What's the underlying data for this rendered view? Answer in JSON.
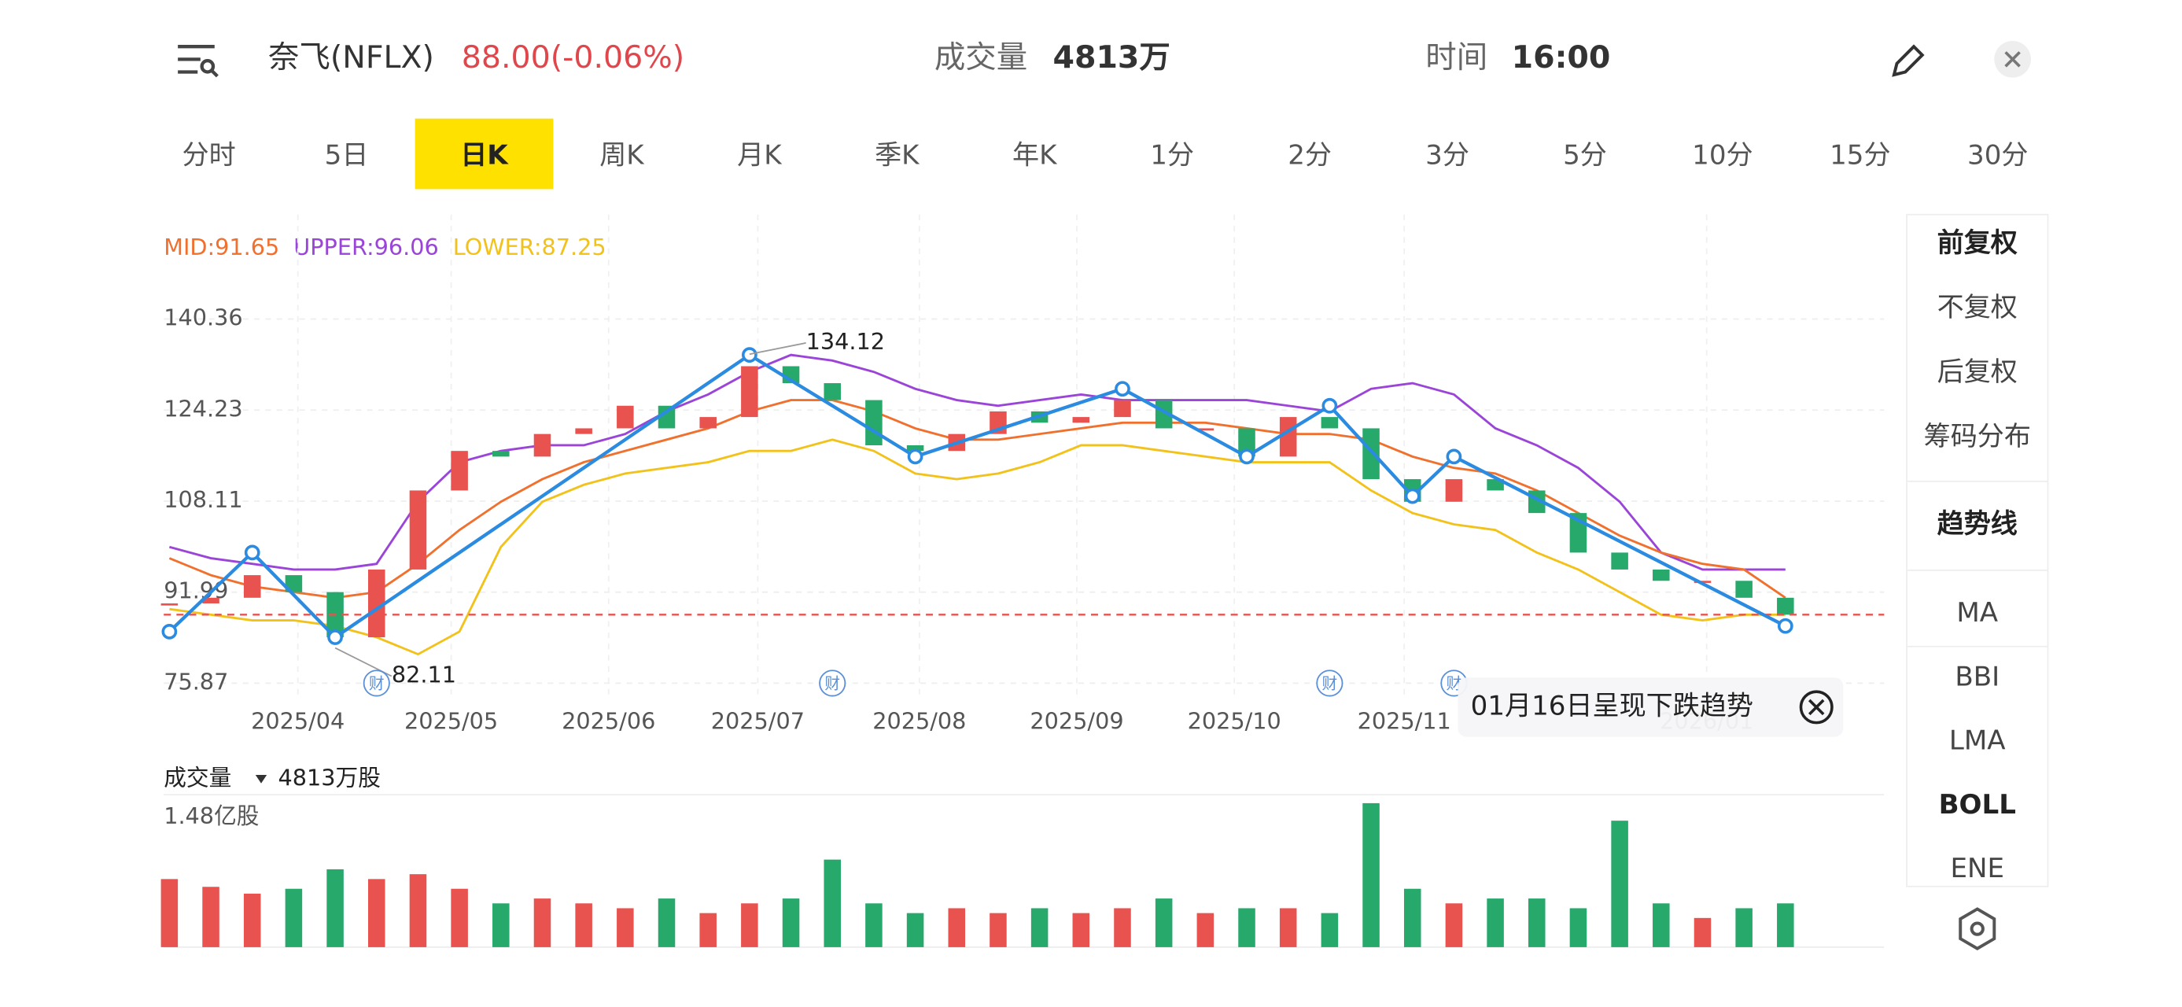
{
  "header": {
    "name": "奈飞(NFLX)",
    "price": "88.00(-0.06%)",
    "volume_label": "成交量",
    "volume": "4813万",
    "time_label": "时间",
    "time": "16:00"
  },
  "tabs": {
    "items": [
      "分时",
      "5日",
      "日K",
      "周K",
      "月K",
      "季K",
      "年K",
      "1分",
      "2分",
      "3分",
      "5分",
      "10分",
      "15分",
      "30分"
    ],
    "selected": 2
  },
  "chart_data": {
    "type": "candlestick",
    "legend": [
      {
        "label": "MID:91.65",
        "color": "#f0702e"
      },
      {
        "label": "UPPER:96.06",
        "color": "#9b45d8"
      },
      {
        "label": "LOWER:87.25",
        "color": "#f2c21b"
      }
    ],
    "ylim": [
      75.87,
      140.36
    ],
    "yticks": [
      75.87,
      91.99,
      108.11,
      124.23,
      140.36
    ],
    "xticks": [
      {
        "value": 3.1,
        "label": "2025/04"
      },
      {
        "value": 6.8,
        "label": "2025/05"
      },
      {
        "value": 10.6,
        "label": "2025/06"
      },
      {
        "value": 14.2,
        "label": "2025/07"
      },
      {
        "value": 18.1,
        "label": "2025/08"
      },
      {
        "value": 21.9,
        "label": "2025/09"
      },
      {
        "value": 25.7,
        "label": "2025/10"
      },
      {
        "value": 29.8,
        "label": "2025/11"
      },
      {
        "value": 37.1,
        "label": "2026/01"
      }
    ],
    "close": [
      90,
      91,
      95,
      92,
      84,
      96,
      110,
      117,
      116,
      120,
      121,
      125,
      121,
      123,
      132,
      129,
      126,
      118,
      117,
      120,
      124,
      122,
      123,
      126,
      121,
      121,
      116,
      123,
      121,
      112,
      108,
      112,
      110,
      106,
      99,
      96,
      94,
      94,
      91,
      88
    ],
    "upper": [
      100,
      98,
      97,
      96,
      96,
      97,
      108,
      115,
      117,
      118,
      118,
      120,
      124,
      127,
      131,
      134,
      133,
      131,
      128,
      126,
      125,
      126,
      127,
      126,
      126,
      126,
      126,
      125,
      124,
      128,
      129,
      127,
      121,
      118,
      114,
      108,
      99,
      96,
      96,
      96
    ],
    "mid": [
      98,
      95,
      93,
      92,
      91,
      92,
      97,
      103,
      108,
      112,
      115,
      117,
      119,
      121,
      124,
      126,
      126,
      124,
      121,
      119,
      119,
      120,
      121,
      122,
      122,
      122,
      121,
      120,
      120,
      119,
      116,
      114,
      113,
      110,
      106,
      102,
      99,
      97,
      96,
      91
    ],
    "lower": [
      89,
      88,
      87,
      87,
      86,
      84,
      81,
      85,
      100,
      108,
      111,
      113,
      114,
      115,
      117,
      117,
      119,
      117,
      113,
      112,
      113,
      115,
      118,
      118,
      117,
      116,
      115,
      115,
      115,
      110,
      106,
      104,
      103,
      99,
      96,
      92,
      88,
      87,
      88,
      88
    ],
    "last_price": 88,
    "annotations": [
      {
        "index": 14,
        "value": 134.12
      },
      {
        "index": 4,
        "value": 82.11
      }
    ],
    "trendline": [
      {
        "index": 0,
        "value": 85
      },
      {
        "index": 2,
        "value": 99
      },
      {
        "index": 4,
        "value": 84
      },
      {
        "index": 14,
        "value": 134
      },
      {
        "index": 18,
        "value": 116
      },
      {
        "index": 23,
        "value": 128
      },
      {
        "index": 26,
        "value": 116
      },
      {
        "index": 28,
        "value": 125
      },
      {
        "index": 30,
        "value": 109
      },
      {
        "index": 31,
        "value": 116
      },
      {
        "index": 39,
        "value": 86
      }
    ],
    "event_marker": "财",
    "event_indices": [
      5,
      16,
      28,
      31
    ],
    "tooltip": "01月16日呈现下跌趋势"
  },
  "volume": {
    "label": "成交量",
    "value": "4813万股",
    "max": {
      "value": 1.48,
      "label": "1.48亿股"
    },
    "values": [
      0.7,
      0.62,
      0.55,
      0.6,
      0.8,
      0.7,
      0.75,
      0.6,
      0.45,
      0.5,
      0.45,
      0.4,
      0.5,
      0.35,
      0.45,
      0.5,
      0.9,
      0.45,
      0.35,
      0.4,
      0.35,
      0.4,
      0.35,
      0.4,
      0.5,
      0.35,
      0.4,
      0.4,
      0.35,
      1.48,
      0.6,
      0.45,
      0.5,
      0.5,
      0.4,
      1.3,
      0.45,
      0.3,
      0.4,
      0.45
    ]
  },
  "sidebar": {
    "group1": [
      "前复权",
      "不复权",
      "后复权",
      "筹码分布"
    ],
    "trend": "趋势线",
    "group2": [
      "MA",
      "BBI",
      "LMA",
      "BOLL",
      "ENE"
    ]
  }
}
